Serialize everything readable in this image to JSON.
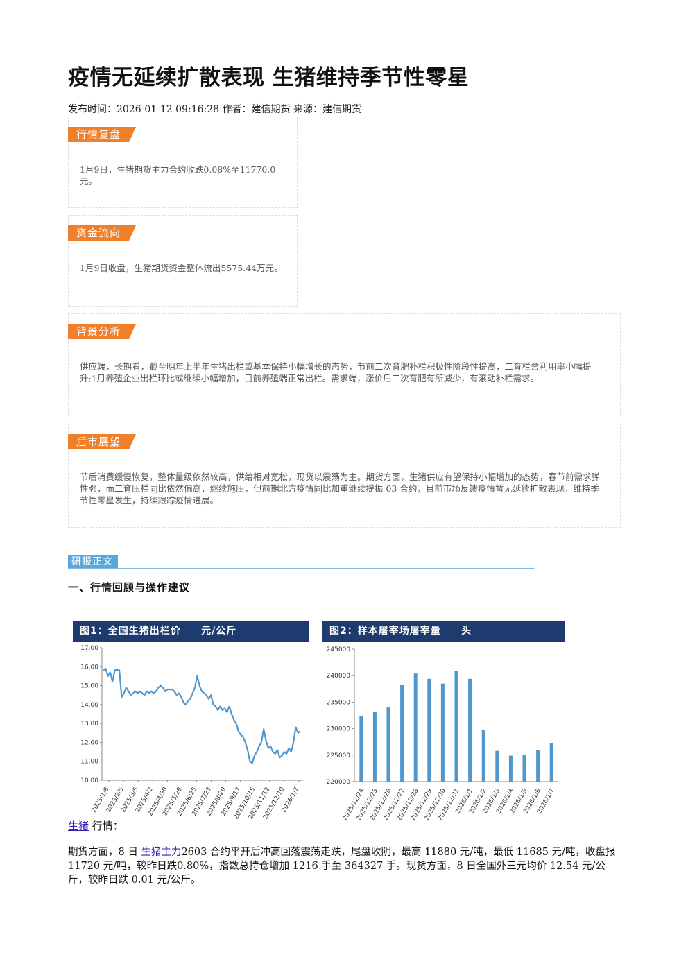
{
  "article": {
    "title": "疫情无延续扩散表现 生猪维持季节性零星",
    "meta": "发布时间：2026-01-12 09:16:28 作者：建信期货 来源：建信期货"
  },
  "boxes": [
    {
      "tag": "行情复盘",
      "text": "1月9日，生猪期货主力合约收跌0.08%至11770.0元。"
    },
    {
      "tag": "资金流向",
      "text": "1月9日收盘，生猪期货资金整体流出5575.44万元。"
    },
    {
      "tag": "背景分析",
      "text": "供应端，长期看，截至明年上半年生猪出栏或基本保持小幅增长的态势，节前二次育肥补栏积极性阶段性提高，二育栏舍利用率小幅提升;1月养殖企业出栏环比或继续小幅增加，目前养殖端正常出栏。需求端，涨价后二次育肥有所减少，有滚动补栏需求。"
    },
    {
      "tag": "后市展望",
      "text": "节后消费缓慢恢复，整体量级依然较高，供给相对宽松，现货以震荡为主。期货方面，生猪供应有望保持小幅增加的态势，春节前需求弹性强，而二育压栏同比依然偏高，继续施压，但前期北方疫情同比加重继续提振 03 合约，目前市场反馈疫情暂无延续扩散表现，维持季节性零星发生，持续跟踪疫情进展。"
    }
  ],
  "report_section": "研报正文",
  "heading1": "一、行情回顾与操作建议",
  "market": {
    "link": "生猪",
    "label": "行情："
  },
  "paragraph": {
    "pre": "期货方面，8 日 ",
    "link": "生猪主力",
    "post": "2603 合约平开后冲高回落震荡走跌，尾盘收阴，最高 11880 元/吨，最低 11685 元/吨，收盘报 11720 元/吨，较昨日跌0.80%，指数总持仓增加 1216 手至 364327 手。现货方面，8 日全国外三元均价 12.54 元/公斤，较昨日跌 0.01 元/公斤。"
  },
  "colors": {
    "accent": "#f07f2a",
    "chart_header": "#1d3b6e",
    "series": "#4f97cf"
  },
  "chart_data": [
    {
      "type": "line",
      "title": "图1：全国生猪出栏价     元/公斤",
      "ylim": [
        10,
        17
      ],
      "yticks": [
        "17.00",
        "16.00",
        "15.00",
        "14.00",
        "13.00",
        "12.00",
        "11.00",
        "10.00"
      ],
      "xticks": [
        "2025/1/8",
        "2025/2/5",
        "2025/3/5",
        "2025/4/2",
        "2025/4/30",
        "2025/5/28",
        "2025/6/25",
        "2025/7/23",
        "2025/8/20",
        "2025/9/17",
        "2025/10/15",
        "2025/11/12",
        "2025/12/10",
        "2026/1/7"
      ],
      "values": [
        15.8,
        15.9,
        15.5,
        15.7,
        15.2,
        15.8,
        15.85,
        15.8,
        14.4,
        14.6,
        14.9,
        14.7,
        14.5,
        14.6,
        14.7,
        14.6,
        14.7,
        14.6,
        14.5,
        14.7,
        14.6,
        14.7,
        14.6,
        14.7,
        14.9,
        15.0,
        14.9,
        14.7,
        14.8,
        14.8,
        14.8,
        14.7,
        14.5,
        14.6,
        14.4,
        14.1,
        14.0,
        14.2,
        14.3,
        14.6,
        14.9,
        15.5,
        15.0,
        14.7,
        14.6,
        14.5,
        14.3,
        14.5,
        14.0,
        13.9,
        13.7,
        13.9,
        13.7,
        13.8,
        13.6,
        13.9,
        13.5,
        13.2,
        13.0,
        12.6,
        12.4,
        12.3,
        12.0,
        11.6,
        11.0,
        10.9,
        11.3,
        11.5,
        11.8,
        12.0,
        12.7,
        12.1,
        11.7,
        11.8,
        11.5,
        11.4,
        11.6,
        11.2,
        11.3,
        11.5,
        11.4,
        11.7,
        11.5,
        12.0,
        12.8,
        12.5,
        12.6
      ]
    },
    {
      "type": "bar",
      "title": "图2：样本屠宰场屠宰量     头",
      "ylim": [
        220000,
        245000
      ],
      "yticks": [
        "245000",
        "240000",
        "235000",
        "230000",
        "225000",
        "220000"
      ],
      "categories": [
        "2025/12/24",
        "2025/12/25",
        "2025/12/26",
        "2025/12/27",
        "2025/12/28",
        "2025/12/29",
        "2025/12/30",
        "2025/12/31",
        "2026/1/1",
        "2026/1/2",
        "2026/1/3",
        "2026/1/4",
        "2026/1/5",
        "2026/1/6",
        "2026/1/7"
      ],
      "values": [
        232300,
        233200,
        234000,
        238200,
        240400,
        239400,
        238500,
        240900,
        239400,
        229800,
        225800,
        224900,
        225100,
        225900,
        227300
      ]
    }
  ]
}
